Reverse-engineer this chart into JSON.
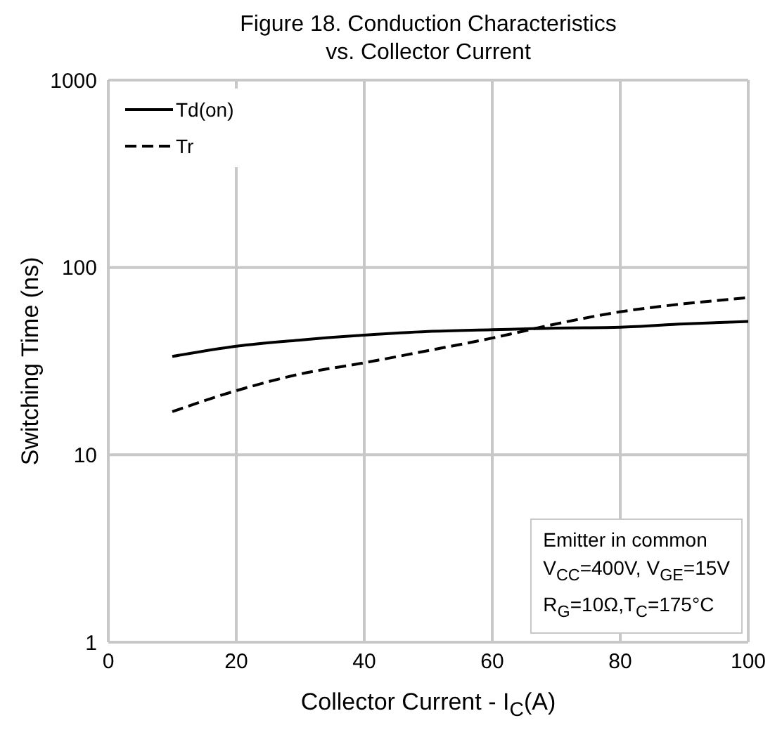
{
  "chart_data": {
    "type": "line",
    "title": "Figure 18. Conduction Characteristics\nvs. Collector Current",
    "xlabel": "Collector Current - I$_{C}$(A)",
    "ylabel": "Switching Time (ns)",
    "x": [
      10,
      20,
      30,
      40,
      50,
      60,
      70,
      80,
      90,
      100
    ],
    "series": [
      {
        "name": "Td(on)",
        "color": "#000000",
        "line_style": "solid",
        "values": [
          33.5,
          38,
          41,
          43.5,
          45.5,
          46.5,
          47.5,
          48,
          50,
          51.5
        ]
      },
      {
        "name": "Tr",
        "color": "#000000",
        "line_style": "dashed",
        "values": [
          17,
          22,
          27,
          31,
          36,
          42,
          50,
          58,
          64,
          69
        ]
      }
    ],
    "xlim": [
      0,
      100
    ],
    "xticks": [
      0,
      20,
      40,
      60,
      80,
      100
    ],
    "ylim": [
      1,
      1000
    ],
    "yticks": [
      1,
      10,
      100,
      1000
    ],
    "log": "y",
    "grid": true,
    "legend": "top left",
    "marker": "none",
    "annotations": [
      "Emitter in common\nV$_{CC}$=400V, V$_{GE}$=15V\nR$_{G}$=10Ω,T$_{C}$=175°C"
    ]
  }
}
